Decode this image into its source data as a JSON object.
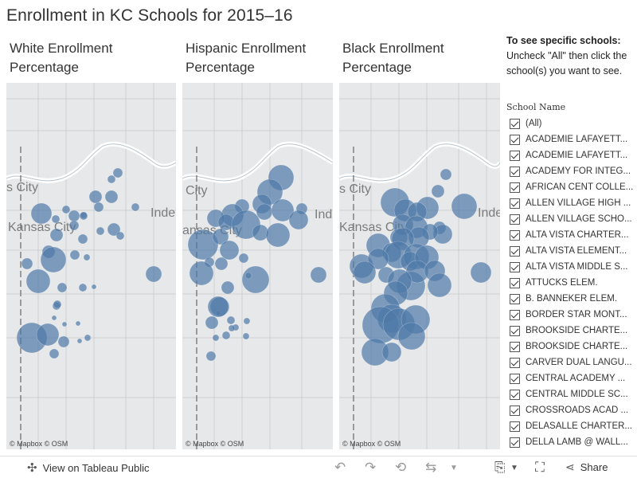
{
  "title": "Enrollment in KC Schools for 2015–16",
  "panels": [
    {
      "title_line1": "White Enrollment",
      "title_line2": "Percentage"
    },
    {
      "title_line1": "Hispanic Enrollment",
      "title_line2": "Percentage"
    },
    {
      "title_line1": "Black Enrollment",
      "title_line2": "Percentage"
    }
  ],
  "map_labels": {
    "kc_ks": "s City",
    "kc_ks_alt": "City",
    "kc_mo": "Kansas City",
    "kc_mo_alt": "ansas City",
    "indep": "Inde",
    "indep_alt": "Ind",
    "attribution_mapbox": "© Mapbox",
    "attribution_osm": "© OSM"
  },
  "sidebar": {
    "instruction_head": "To see specific schools:",
    "instruction_body": "Uncheck \"All\" then click the school(s) you want to see.",
    "filter_title": "School Name",
    "items": [
      "(All)",
      "ACADEMIE LAFAYETT...",
      "ACADEMIE LAFAYETT...",
      "ACADEMY FOR INTEG...",
      "AFRICAN CENT COLLE...",
      "ALLEN VILLAGE HIGH ...",
      "ALLEN VILLAGE SCHO...",
      "ALTA VISTA CHARTER...",
      "ALTA VISTA ELEMENT...",
      "ALTA VISTA MIDDLE S...",
      "ATTUCKS ELEM.",
      "B. BANNEKER ELEM.",
      "BORDER STAR MONT...",
      "BROOKSIDE CHARTE...",
      "BROOKSIDE CHARTE...",
      "CARVER DUAL LANGU...",
      "CENTRAL ACADEMY ...",
      "CENTRAL MIDDLE SC...",
      "CROSSROADS ACAD ...",
      "DELASALLE CHARTER...",
      "DELLA LAMB @ WALL..."
    ]
  },
  "footer": {
    "view_label": "View on Tableau Public",
    "share_label": "Share"
  },
  "colors": {
    "bubble": "#4e79a7",
    "map_bg": "#e7e8e9",
    "river": "#ffffff",
    "road": "#c6c8ca"
  }
}
